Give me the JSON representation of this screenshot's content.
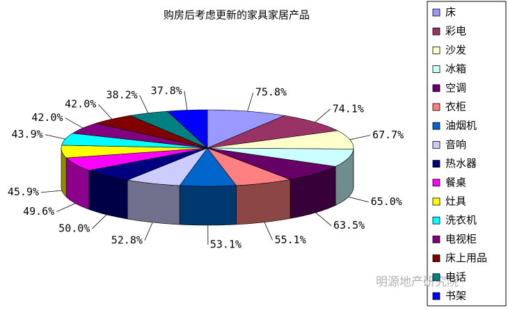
{
  "chart_data": {
    "type": "pie3d",
    "title": "购房后考虑更新的家具家居产品",
    "categories": [
      "床",
      "彩电",
      "沙发",
      "冰箱",
      "空调",
      "衣柜",
      "油烟机",
      "音响",
      "热水器",
      "餐桌",
      "灶具",
      "洗衣机",
      "电视柜",
      "床上用品",
      "电话",
      "书架"
    ],
    "values": [
      75.8,
      74.1,
      67.7,
      65.0,
      63.5,
      55.1,
      53.1,
      52.8,
      50.0,
      49.6,
      45.9,
      43.9,
      42.0,
      42.0,
      38.2,
      37.8
    ],
    "value_labels": [
      "75.8%",
      "74.1%",
      "67.7%",
      "65.0%",
      "63.5%",
      "55.1%",
      "53.1%",
      "52.8%",
      "50.0%",
      "49.6%",
      "45.9%",
      "43.9%",
      "42.0%",
      "42.0%",
      "38.2%",
      "37.8%"
    ],
    "colors": [
      "#9999ff",
      "#993366",
      "#ffffcc",
      "#ccffff",
      "#660066",
      "#ff8080",
      "#0066cc",
      "#ccccff",
      "#000080",
      "#ff00ff",
      "#ffff00",
      "#00ffff",
      "#800080",
      "#800000",
      "#008080",
      "#0000ff"
    ],
    "legend": "right"
  },
  "watermark": "明源地产研究院"
}
